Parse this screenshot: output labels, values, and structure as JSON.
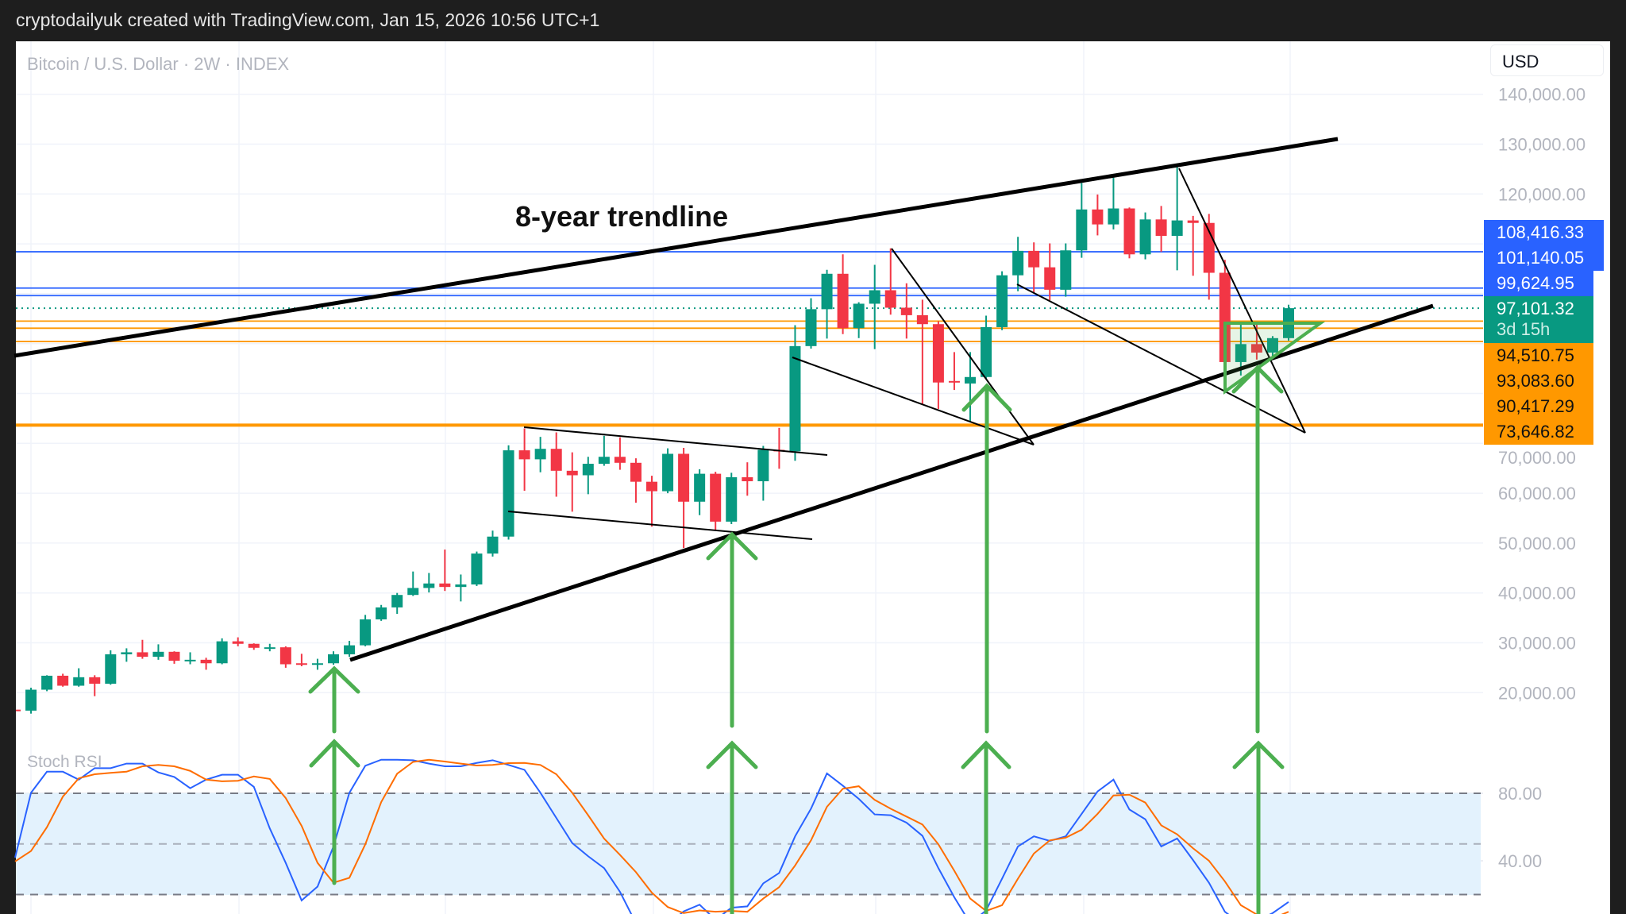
{
  "header": {
    "text": "cryptodailyuk created with TradingView.com, Jan 15, 2026 10:56 UTC+1"
  },
  "chart": {
    "title": "Bitcoin / U.S. Dollar · 2W · INDEX",
    "currency_button": "USD",
    "annotation": "8-year trendline",
    "indicator_label": "Stoch RSI",
    "colors": {
      "up": "#089981",
      "down": "#f23645",
      "blue_level": "#2962ff",
      "orange_level": "#ff9800",
      "arrow": "#4caf50",
      "stoch_k": "#2962ff",
      "stoch_d": "#ff6d00",
      "stoch_band": "#e3f2fd"
    }
  },
  "price_tags": [
    {
      "value": "108,416.33",
      "color": "blue"
    },
    {
      "value": "101,140.05",
      "color": "blue"
    },
    {
      "value": "99,624.95",
      "color": "blue"
    },
    {
      "value": "97,101.32",
      "countdown": "3d 15h",
      "color": "green"
    },
    {
      "value": "94,510.75",
      "color": "orange"
    },
    {
      "value": "93,083.60",
      "color": "orange"
    },
    {
      "value": "90,417.29",
      "color": "orange"
    },
    {
      "value": "73,646.82",
      "color": "orange"
    }
  ],
  "chart_data": [
    {
      "type": "candlestick",
      "title": "Bitcoin / U.S. Dollar · 2W · INDEX",
      "y_axis": {
        "scale": "linear",
        "range": [
          12000,
          145000
        ],
        "ticks": [
          "140,000.00",
          "130,000.00",
          "120,000.00",
          "70,000.00",
          "60,000.00",
          "50,000.00",
          "40,000.00",
          "30,000.00",
          "20,000.00"
        ],
        "tick_values": [
          140000,
          130000,
          120000,
          70000,
          60000,
          50000,
          40000,
          30000,
          20000
        ]
      },
      "grid": true,
      "ohlc": [
        [
          16600,
          16800,
          16300,
          16400
        ],
        [
          16400,
          21000,
          15800,
          20600
        ],
        [
          20600,
          23500,
          20300,
          23400
        ],
        [
          23400,
          23800,
          21200,
          21400
        ],
        [
          21400,
          24900,
          21200,
          23100
        ],
        [
          23100,
          23500,
          19300,
          21800
        ],
        [
          21800,
          28500,
          21600,
          27700
        ],
        [
          27700,
          28900,
          26200,
          28100
        ],
        [
          28100,
          30600,
          26800,
          27200
        ],
        [
          27200,
          29700,
          26600,
          28200
        ],
        [
          28200,
          28300,
          25800,
          26400
        ],
        [
          26400,
          28100,
          25700,
          26600
        ],
        [
          26600,
          27000,
          24600,
          25900
        ],
        [
          25900,
          30900,
          25700,
          30300
        ],
        [
          30300,
          31100,
          29300,
          29800
        ],
        [
          29800,
          29900,
          28600,
          29000
        ],
        [
          29000,
          29800,
          28300,
          29100
        ],
        [
          29100,
          29300,
          25000,
          25700
        ],
        [
          25900,
          27800,
          25300,
          25700
        ],
        [
          25700,
          26800,
          24600,
          25900
        ],
        [
          25900,
          28300,
          25600,
          27700
        ],
        [
          27700,
          30400,
          27200,
          29500
        ],
        [
          29500,
          35600,
          29300,
          34700
        ],
        [
          34700,
          37600,
          34400,
          37100
        ],
        [
          37100,
          40000,
          35800,
          39600
        ],
        [
          39600,
          44300,
          39400,
          41000
        ],
        [
          41000,
          44000,
          40100,
          41900
        ],
        [
          41900,
          48700,
          40400,
          41200
        ],
        [
          41200,
          43700,
          38300,
          41700
        ],
        [
          41700,
          48300,
          41400,
          47900
        ],
        [
          47900,
          52500,
          47300,
          51300
        ],
        [
          51300,
          69600,
          50700,
          68600
        ],
        [
          68600,
          73000,
          60500,
          66800
        ],
        [
          66800,
          71300,
          64200,
          68900
        ],
        [
          68900,
          72200,
          59300,
          64500
        ],
        [
          64500,
          68200,
          56300,
          63600
        ],
        [
          63600,
          67300,
          59800,
          65900
        ],
        [
          65900,
          71500,
          65500,
          67300
        ],
        [
          67300,
          71200,
          64700,
          66100
        ],
        [
          66100,
          67000,
          58100,
          62300
        ],
        [
          62300,
          63500,
          53300,
          60400
        ],
        [
          60400,
          69000,
          60000,
          67900
        ],
        [
          67900,
          69100,
          49000,
          58300
        ],
        [
          58300,
          64800,
          55600,
          63900
        ],
        [
          63900,
          64300,
          52500,
          54300
        ],
        [
          54300,
          64100,
          53800,
          63200
        ],
        [
          63200,
          66200,
          59500,
          62400
        ],
        [
          62400,
          69500,
          58500,
          68700
        ],
        [
          68700,
          73100,
          64900,
          68400
        ],
        [
          68400,
          93700,
          66500,
          89500
        ],
        [
          89500,
          99100,
          89000,
          96900
        ],
        [
          96900,
          104800,
          91000,
          104000
        ],
        [
          104000,
          107900,
          91900,
          93100
        ],
        [
          93100,
          98300,
          91100,
          98000
        ],
        [
          98000,
          105800,
          88900,
          100700
        ],
        [
          100700,
          109100,
          95800,
          97200
        ],
        [
          97200,
          102100,
          91000,
          95700
        ],
        [
          95700,
          98800,
          77900,
          93900
        ],
        [
          93900,
          94500,
          76900,
          82200
        ],
        [
          82500,
          88300,
          80700,
          82200
        ],
        [
          82000,
          88300,
          74400,
          83300
        ],
        [
          83300,
          95600,
          83000,
          93300
        ],
        [
          93300,
          104500,
          92700,
          103700
        ],
        [
          103700,
          111400,
          100500,
          108600
        ],
        [
          108600,
          110300,
          100300,
          105300
        ],
        [
          105300,
          110100,
          98700,
          100800
        ],
        [
          100800,
          110100,
          99400,
          108700
        ],
        [
          108700,
          122200,
          107200,
          116900
        ],
        [
          116900,
          119900,
          111700,
          113900
        ],
        [
          113900,
          123300,
          112900,
          117100
        ],
        [
          117100,
          117300,
          107100,
          107900
        ],
        [
          107900,
          116300,
          106900,
          114900
        ],
        [
          114900,
          117600,
          108400,
          111600
        ],
        [
          111600,
          125700,
          104700,
          114700
        ],
        [
          114700,
          115600,
          103600,
          114200
        ],
        [
          114200,
          116000,
          98800,
          104200
        ],
        [
          104200,
          106800,
          86000,
          86300
        ],
        [
          86300,
          93900,
          83600,
          89900
        ],
        [
          89900,
          93900,
          86800,
          88200
        ],
        [
          88200,
          91500,
          87500,
          91100
        ],
        [
          91100,
          97800,
          90600,
          97101.32
        ]
      ],
      "horizontal_levels": [
        {
          "price": 108416.33,
          "color": "#2962ff",
          "style": "solid"
        },
        {
          "price": 101140.05,
          "color": "#2962ff",
          "style": "solid"
        },
        {
          "price": 99624.95,
          "color": "#2962ff",
          "style": "solid"
        },
        {
          "price": 97101.32,
          "color": "#089981",
          "style": "dotted"
        },
        {
          "price": 94510.75,
          "color": "#ff9800",
          "style": "solid"
        },
        {
          "price": 93083.6,
          "color": "#ff9800",
          "style": "solid"
        },
        {
          "price": 90417.29,
          "color": "#ff9800",
          "style": "solid"
        },
        {
          "price": 73646.82,
          "color": "#ff9800",
          "style": "thick"
        }
      ],
      "annotations": [
        "8-year trendline"
      ]
    },
    {
      "type": "line",
      "title": "Stoch RSI",
      "y_axis": {
        "range": [
          0,
          100
        ],
        "ticks": [
          "80.00",
          "40.00"
        ],
        "tick_values": [
          80,
          40
        ]
      },
      "band": [
        20,
        80
      ],
      "dashed_levels": [
        80,
        50,
        20
      ],
      "series": [
        {
          "color": "#2962ff",
          "values": [
            41.9,
            80.3,
            92.8,
            92.8,
            88.1,
            94.9,
            94.9,
            97.6,
            97.6,
            92.4,
            89.7,
            83,
            88.1,
            91,
            91,
            83.8,
            59.2,
            38.8,
            16.5,
            24.7,
            48.5,
            80.3,
            96.3,
            99.9,
            99.9,
            99.6,
            97.6,
            96,
            96,
            98,
            99.6,
            96.8,
            93.9,
            80.3,
            65.4,
            50.5,
            42.7,
            35.7,
            21.6,
            3,
            2,
            2,
            10,
            14,
            5,
            12.2,
            13,
            26.6,
            32.8,
            54.5,
            70.9,
            91.8,
            84.5,
            76.7,
            67.5,
            67,
            62.6,
            54.8,
            35.7,
            18.4,
            3,
            10.6,
            29.4,
            48.5,
            54.5,
            51.8,
            54.5,
            67.8,
            81.1,
            88.1,
            70.4,
            64.6,
            48.5,
            53.2,
            40.4,
            27,
            9.8,
            2.7,
            4.3,
            9,
            15.6
          ]
        },
        {
          "color": "#ff6d00",
          "values": [
            39.6,
            45.8,
            59.9,
            78,
            88.9,
            91.3,
            92.1,
            92.8,
            96,
            96.8,
            96,
            93.3,
            88.1,
            87.1,
            87.4,
            90,
            88.5,
            77.2,
            60.7,
            38.8,
            27,
            29.9,
            49.8,
            74.8,
            91.6,
            98.6,
            99.9,
            98.8,
            97.6,
            96.5,
            96.8,
            97.9,
            98,
            96.8,
            91.3,
            80.3,
            67,
            53.2,
            43.5,
            33.3,
            21.1,
            12.6,
            9,
            10.6,
            9.8,
            10.3,
            9.8,
            17.6,
            24.4,
            37.2,
            52.1,
            72,
            82.7,
            84.2,
            76.1,
            70.9,
            66.2,
            61.5,
            49.8,
            34.1,
            17.6,
            10.3,
            13.7,
            29.4,
            44.3,
            52.1,
            53.7,
            58.4,
            67.8,
            78.7,
            79.2,
            74.5,
            61,
            55.7,
            47.4,
            40,
            27.8,
            13.7,
            8.2,
            5.9,
            9.8
          ]
        }
      ]
    }
  ]
}
